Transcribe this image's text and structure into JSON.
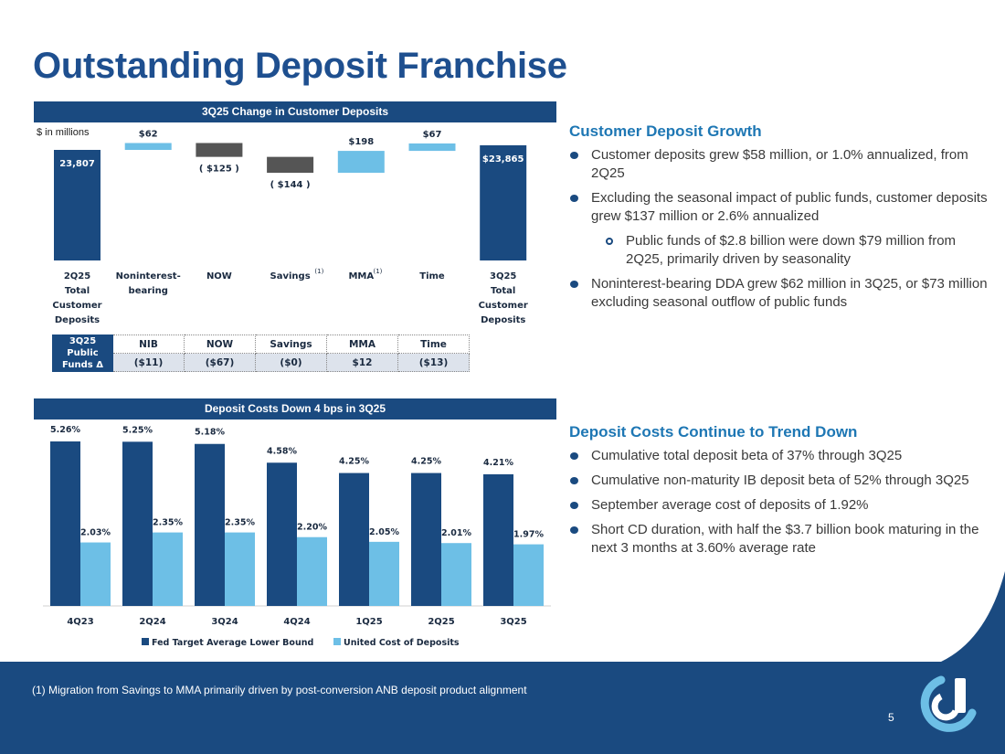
{
  "slide": {
    "title": "Outstanding Deposit Franchise",
    "page_number": "5",
    "footnote": "(1) Migration from Savings to MMA primarily driven by post-conversion ANB deposit product alignment"
  },
  "colors": {
    "dark_blue": "#1a4a80",
    "light_blue": "#6dbfe6",
    "increase": "#6dbfe6",
    "decrease": "#555555",
    "title_blue": "#1e4f8f",
    "accent_blue": "#1e77b4"
  },
  "waterfall_panel": {
    "header": "3Q25 Change in Customer Deposits",
    "units": "$ in millions"
  },
  "deposit_costs_panel": {
    "header": "Deposit Costs Down 4 bps in 3Q25"
  },
  "public_funds_table": {
    "row_label": "3Q25 Public Funds Δ",
    "columns": [
      "NIB",
      "NOW",
      "Savings",
      "MMA",
      "Time"
    ],
    "values": [
      "($11)",
      "($67)",
      "($0)",
      "$12",
      "($13)"
    ]
  },
  "chart_data": [
    {
      "type": "bar",
      "subtype": "waterfall",
      "title": "3Q25 Change in Customer Deposits",
      "ylabel": "$ in millions",
      "categories": [
        {
          "lines": [
            "2Q25",
            "Total",
            "Customer",
            "Deposits"
          ],
          "sup": ""
        },
        {
          "lines": [
            "Noninterest-",
            "bearing"
          ],
          "sup": ""
        },
        {
          "lines": [
            "NOW"
          ],
          "sup": ""
        },
        {
          "lines": [
            "Savings"
          ],
          "sup": "(1)"
        },
        {
          "lines": [
            "MMA"
          ],
          "sup": "(1)"
        },
        {
          "lines": [
            "Time"
          ],
          "sup": ""
        },
        {
          "lines": [
            "3Q25",
            "Total",
            "Customer",
            "Deposits"
          ],
          "sup": ""
        }
      ],
      "values": [
        23807,
        62,
        -125,
        -144,
        198,
        67,
        23865
      ],
      "kinds": [
        "total",
        "delta",
        "delta",
        "delta",
        "delta",
        "delta",
        "total"
      ],
      "labels": [
        "23,807",
        "$62",
        "( $125 )",
        "( $144 )",
        "$198",
        "$67",
        "$23,865"
      ]
    },
    {
      "type": "bar",
      "title": "Deposit Costs Down 4 bps in 3Q25",
      "categories": [
        "4Q23",
        "2Q24",
        "3Q24",
        "4Q24",
        "1Q25",
        "2Q25",
        "3Q25"
      ],
      "series": [
        {
          "name": "Fed Target Average Lower Bound",
          "values": [
            5.26,
            5.25,
            5.18,
            4.58,
            4.25,
            4.25,
            4.21
          ],
          "labels": [
            "5.26%",
            "5.25%",
            "5.18%",
            "4.58%",
            "4.25%",
            "4.25%",
            "4.21%"
          ]
        },
        {
          "name": "United Cost of Deposits",
          "values": [
            2.03,
            2.35,
            2.35,
            2.2,
            2.05,
            2.01,
            1.97
          ],
          "labels": [
            "2.03%",
            "2.35%",
            "2.35%",
            "2.20%",
            "2.05%",
            "2.01%",
            "1.97%"
          ]
        }
      ],
      "ylim": [
        0,
        5.5
      ],
      "legend": "bottom"
    }
  ],
  "right_sections": [
    {
      "heading": "Customer Deposit Growth",
      "bullets": [
        {
          "text": "Customer deposits grew $58 million, or 1.0% annualized, from 2Q25",
          "level": 1
        },
        {
          "text": "Excluding the seasonal impact of public funds, customer deposits grew $137 million or 2.6% annualized",
          "level": 1
        },
        {
          "text": "Public funds of $2.8 billion were down $79 million from 2Q25, primarily driven by seasonality",
          "level": 2
        },
        {
          "text": "Noninterest-bearing DDA grew $62 million in 3Q25, or $73 million excluding seasonal outflow of public funds",
          "level": 1
        }
      ]
    },
    {
      "heading": "Deposit Costs Continue to Trend Down",
      "bullets": [
        {
          "text": "Cumulative total deposit beta of 37% through 3Q25",
          "level": 1
        },
        {
          "text": "Cumulative non-maturity IB deposit beta of 52% through 3Q25",
          "level": 1
        },
        {
          "text": "September average cost of deposits of 1.92%",
          "level": 1
        },
        {
          "text": "Short CD duration, with half the $3.7 billion book maturing in the next 3 months at 3.60% average rate",
          "level": 1
        }
      ]
    }
  ]
}
